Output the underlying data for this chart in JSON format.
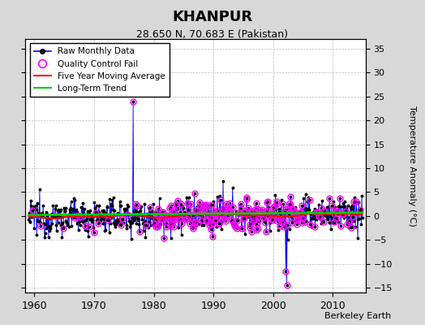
{
  "title": "KHANPUR",
  "subtitle": "28.650 N, 70.683 E (Pakistan)",
  "ylabel": "Temperature Anomaly (°C)",
  "attribution": "Berkeley Earth",
  "xlim": [
    1958.5,
    2015.5
  ],
  "ylim": [
    -16,
    37
  ],
  "yticks": [
    -15,
    -10,
    -5,
    0,
    5,
    10,
    15,
    20,
    25,
    30,
    35
  ],
  "xticks": [
    1960,
    1970,
    1980,
    1990,
    2000,
    2010
  ],
  "raw_color": "#0000ff",
  "qc_color": "#ff00ff",
  "moving_avg_color": "#ff0000",
  "trend_color": "#00cc00",
  "bg_color": "#d8d8d8",
  "plot_bg_color": "#ffffff",
  "grid_color": "#bbbbbb",
  "spike_up_year": 1976.5,
  "spike_up_val": 24.0,
  "spike_down_year1": 2002.1,
  "spike_down_val1": -11.5,
  "spike_down_year2": 2002.3,
  "spike_down_val2": -14.5
}
